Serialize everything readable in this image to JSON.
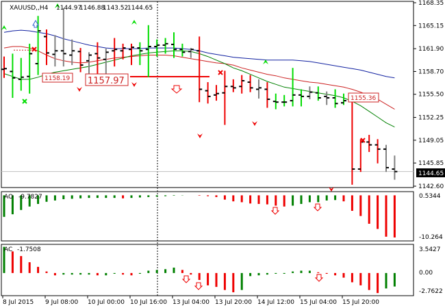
{
  "window": {
    "symbol_title": "XAUUSD,,H4",
    "ohlc": [
      "1144.97",
      "1146.88",
      "1143.52",
      "1144.65"
    ],
    "current_price_label": "1144.65"
  },
  "indicators": {
    "ao": {
      "title": "AO",
      "value": "-9.7827",
      "axis_labels": [
        "0.5344",
        "-10.264"
      ]
    },
    "ac": {
      "title": "AC",
      "value": "-1.7508",
      "axis_labels": [
        "3.5427",
        "0.00",
        "-2.7622"
      ]
    }
  },
  "colors": {
    "bull_bar": "#00dd00",
    "bear_bar": "#ee0000",
    "neutral_bar": "#808080",
    "ma_blue": "#1020a0",
    "ma_red": "#cc2020",
    "ma_green": "#008000",
    "ao_up": "#008000",
    "ao_down": "#ee0000",
    "stop_line": "#ee0000",
    "price_line": "#c0c0c0"
  },
  "annotations": {
    "box1": "1158.19",
    "box2": "1157.97",
    "box3": "1155.36"
  },
  "chart_data": [
    {
      "type": "ohlc",
      "title": "XAUUSD,,H4",
      "x_tick_labels": [
        "8 Jul 2015",
        "9 Jul 08:00",
        "10 Jul 00:00",
        "10 Jul 16:00",
        "13 Jul 04:00",
        "13 Jul 20:00",
        "14 Jul 12:00",
        "15 Jul 04:00",
        "15 Jul 20:00"
      ],
      "y_tick_labels": [
        "1168.35",
        "1165.15",
        "1161.90",
        "1158.70",
        "1155.50",
        "1152.25",
        "1149.05",
        "1145.85",
        "1142.60"
      ],
      "ylim": [
        1142.6,
        1168.35
      ],
      "bars": [
        {
          "o": 1159.0,
          "h": 1160.8,
          "l": 1157.8,
          "c": 1159.1,
          "color": "bear"
        },
        {
          "o": 1158.7,
          "h": 1161.2,
          "l": 1155.0,
          "c": 1157.8,
          "color": "bull"
        },
        {
          "o": 1157.6,
          "h": 1160.6,
          "l": 1156.0,
          "c": 1157.9,
          "color": "bull"
        },
        {
          "o": 1158.0,
          "h": 1162.6,
          "l": 1155.6,
          "c": 1161.2,
          "color": "bull"
        },
        {
          "o": 1159.8,
          "h": 1166.5,
          "l": 1158.2,
          "c": 1164.4,
          "color": "bull"
        },
        {
          "o": 1163.6,
          "h": 1164.6,
          "l": 1159.6,
          "c": 1161.3,
          "color": "bear"
        },
        {
          "o": 1161.1,
          "h": 1163.8,
          "l": 1159.4,
          "c": 1161.6,
          "color": "neutral"
        },
        {
          "o": 1161.6,
          "h": 1167.6,
          "l": 1159.4,
          "c": 1161.2,
          "color": "neutral"
        },
        {
          "o": 1161.0,
          "h": 1163.2,
          "l": 1159.6,
          "c": 1161.6,
          "color": "neutral"
        },
        {
          "o": 1161.5,
          "h": 1162.0,
          "l": 1158.6,
          "c": 1159.6,
          "color": "bear"
        },
        {
          "o": 1160.2,
          "h": 1161.4,
          "l": 1157.6,
          "c": 1161.0,
          "color": "neutral"
        },
        {
          "o": 1161.2,
          "h": 1162.8,
          "l": 1158.0,
          "c": 1160.6,
          "color": "bear"
        },
        {
          "o": 1160.4,
          "h": 1161.9,
          "l": 1158.4,
          "c": 1161.4,
          "color": "neutral"
        },
        {
          "o": 1161.6,
          "h": 1163.4,
          "l": 1159.4,
          "c": 1161.8,
          "color": "bear"
        },
        {
          "o": 1161.6,
          "h": 1162.6,
          "l": 1160.4,
          "c": 1162.0,
          "color": "bear"
        },
        {
          "o": 1161.8,
          "h": 1162.6,
          "l": 1159.6,
          "c": 1162.1,
          "color": "bear"
        },
        {
          "o": 1162.0,
          "h": 1162.8,
          "l": 1159.6,
          "c": 1161.6,
          "color": "bull"
        },
        {
          "o": 1161.8,
          "h": 1165.2,
          "l": 1157.9,
          "c": 1162.2,
          "color": "bull"
        },
        {
          "o": 1162.2,
          "h": 1163.2,
          "l": 1160.8,
          "c": 1162.4,
          "color": "bull"
        },
        {
          "o": 1162.4,
          "h": 1163.4,
          "l": 1161.2,
          "c": 1162.6,
          "color": "bull"
        },
        {
          "o": 1162.5,
          "h": 1164.2,
          "l": 1160.6,
          "c": 1161.8,
          "color": "bull"
        },
        {
          "o": 1161.8,
          "h": 1162.6,
          "l": 1160.8,
          "c": 1161.4,
          "color": "bull"
        },
        {
          "o": 1161.5,
          "h": 1162.0,
          "l": 1160.6,
          "c": 1161.8,
          "color": "neutral"
        },
        {
          "o": 1161.6,
          "h": 1163.6,
          "l": 1154.4,
          "c": 1156.2,
          "color": "bear"
        },
        {
          "o": 1156.0,
          "h": 1157.2,
          "l": 1154.2,
          "c": 1155.2,
          "color": "bear"
        },
        {
          "o": 1155.4,
          "h": 1156.8,
          "l": 1154.6,
          "c": 1155.6,
          "color": "bear"
        },
        {
          "o": 1155.7,
          "h": 1158.8,
          "l": 1151.2,
          "c": 1156.6,
          "color": "bear"
        },
        {
          "o": 1156.6,
          "h": 1157.6,
          "l": 1155.8,
          "c": 1156.4,
          "color": "bear"
        },
        {
          "o": 1156.6,
          "h": 1158.2,
          "l": 1155.6,
          "c": 1157.4,
          "color": "bear"
        },
        {
          "o": 1157.2,
          "h": 1158.2,
          "l": 1155.8,
          "c": 1156.4,
          "color": "bear"
        },
        {
          "o": 1156.2,
          "h": 1157.6,
          "l": 1154.9,
          "c": 1156.4,
          "color": "neutral"
        },
        {
          "o": 1156.2,
          "h": 1157.2,
          "l": 1153.6,
          "c": 1154.8,
          "color": "bear"
        },
        {
          "o": 1154.5,
          "h": 1155.6,
          "l": 1153.4,
          "c": 1154.4,
          "color": "bull"
        },
        {
          "o": 1154.4,
          "h": 1155.4,
          "l": 1153.8,
          "c": 1154.4,
          "color": "bull"
        },
        {
          "o": 1154.6,
          "h": 1159.2,
          "l": 1153.8,
          "c": 1155.4,
          "color": "bull"
        },
        {
          "o": 1155.4,
          "h": 1156.2,
          "l": 1153.8,
          "c": 1155.2,
          "color": "bull"
        },
        {
          "o": 1155.2,
          "h": 1156.6,
          "l": 1154.8,
          "c": 1155.8,
          "color": "neutral"
        },
        {
          "o": 1155.7,
          "h": 1156.6,
          "l": 1154.6,
          "c": 1155.0,
          "color": "bull"
        },
        {
          "o": 1155.2,
          "h": 1155.9,
          "l": 1154.0,
          "c": 1155.0,
          "color": "neutral"
        },
        {
          "o": 1155.0,
          "h": 1156.2,
          "l": 1153.6,
          "c": 1154.2,
          "color": "bull"
        },
        {
          "o": 1154.3,
          "h": 1155.6,
          "l": 1154.0,
          "c": 1154.6,
          "color": "bull"
        },
        {
          "o": 1154.6,
          "h": 1155.4,
          "l": 1142.8,
          "c": 1145.0,
          "color": "bear"
        },
        {
          "o": 1145.0,
          "h": 1149.2,
          "l": 1144.6,
          "c": 1148.8,
          "color": "bear"
        },
        {
          "o": 1148.8,
          "h": 1149.8,
          "l": 1147.4,
          "c": 1148.4,
          "color": "bear"
        },
        {
          "o": 1148.4,
          "h": 1149.2,
          "l": 1145.8,
          "c": 1147.8,
          "color": "bear"
        },
        {
          "o": 1147.8,
          "h": 1148.4,
          "l": 1144.6,
          "c": 1145.2,
          "color": "neutral"
        },
        {
          "o": 1145.0,
          "h": 1146.9,
          "l": 1143.5,
          "c": 1144.65,
          "color": "neutral"
        }
      ],
      "ma_blue": [
        1164.2,
        1164.4,
        1164.5,
        1164.4,
        1164.2,
        1164.0,
        1163.7,
        1163.3,
        1163.0,
        1162.7,
        1162.4,
        1162.2,
        1162.0,
        1161.9,
        1161.9,
        1161.9,
        1161.9,
        1162.0,
        1162.0,
        1162.0,
        1162.0,
        1161.9,
        1161.8,
        1161.6,
        1161.3,
        1161.1,
        1160.9,
        1160.7,
        1160.6,
        1160.5,
        1160.4,
        1160.3,
        1160.3,
        1160.3,
        1160.3,
        1160.2,
        1160.1,
        1159.9,
        1159.7,
        1159.5,
        1159.3,
        1159.1,
        1158.9,
        1158.6,
        1158.3,
        1158.0,
        1157.8
      ],
      "ma_red": [
        1162.0,
        1162.2,
        1162.2,
        1162.0,
        1161.6,
        1161.0,
        1160.5,
        1160.2,
        1160.0,
        1159.9,
        1160.0,
        1160.2,
        1160.4,
        1160.6,
        1160.7,
        1160.8,
        1160.9,
        1161.0,
        1161.0,
        1161.0,
        1160.9,
        1160.7,
        1160.5,
        1160.3,
        1160.1,
        1159.9,
        1159.8,
        1159.6,
        1159.2,
        1158.9,
        1158.6,
        1158.3,
        1158.1,
        1157.8,
        1157.6,
        1157.4,
        1157.2,
        1157.1,
        1156.9,
        1156.7,
        1156.5,
        1156.2,
        1155.8,
        1155.3,
        1154.8,
        1154.1,
        1153.4
      ],
      "ma_green": [
        1158.4,
        1158.0,
        1157.6,
        1157.6,
        1157.9,
        1158.3,
        1158.6,
        1158.8,
        1159.0,
        1159.2,
        1159.4,
        1159.7,
        1160.0,
        1160.3,
        1160.6,
        1160.9,
        1161.1,
        1161.3,
        1161.4,
        1161.5,
        1161.6,
        1161.6,
        1161.5,
        1161.2,
        1160.8,
        1160.3,
        1159.8,
        1159.2,
        1158.8,
        1158.3,
        1157.8,
        1157.3,
        1156.9,
        1156.5,
        1156.3,
        1156.1,
        1155.9,
        1155.7,
        1155.5,
        1155.3,
        1155.0,
        1154.5,
        1153.9,
        1153.1,
        1152.3,
        1151.5,
        1150.9
      ],
      "annotation_values": [
        1158.19,
        1157.97,
        1155.36
      ],
      "stop_line_value": 1157.97,
      "current_price": 1144.65
    },
    {
      "type": "bar",
      "title": "AO",
      "ylim": [
        -10.264,
        0.5344
      ],
      "values": [
        -5.0,
        -4.4,
        -3.4,
        -2.6,
        -2.0,
        -1.5,
        -1.2,
        -0.9,
        -0.8,
        -0.7,
        -0.6,
        -0.6,
        -0.6,
        -0.6,
        -0.7,
        -0.6,
        -0.5,
        -0.4,
        -0.3,
        -0.2,
        -0.1,
        -0.05,
        0.0,
        -0.1,
        -0.2,
        -0.4,
        -1.0,
        -1.4,
        -1.6,
        -1.9,
        -2.0,
        -2.1,
        -2.4,
        -2.6,
        -2.4,
        -2.0,
        -1.6,
        -1.6,
        -1.2,
        -1.1,
        -1.4,
        -3.6,
        -4.8,
        -6.6,
        -7.8,
        -9.6,
        -9.78
      ],
      "direction": [
        "up",
        "up",
        "up",
        "up",
        "up",
        "up",
        "up",
        "up",
        "up",
        "up",
        "up",
        "up",
        "up",
        "up",
        "down",
        "up",
        "up",
        "up",
        "up",
        "up",
        "up",
        "up",
        "up",
        "down",
        "down",
        "down",
        "down",
        "down",
        "down",
        "down",
        "down",
        "down",
        "down",
        "down",
        "up",
        "up",
        "up",
        "up",
        "up",
        "up",
        "down",
        "down",
        "down",
        "down",
        "down",
        "down",
        "down"
      ]
    },
    {
      "type": "bar",
      "title": "AC",
      "ylim": [
        -2.7622,
        3.5427
      ],
      "values": [
        3.4,
        2.8,
        2.2,
        1.4,
        0.8,
        0.2,
        -0.3,
        -0.2,
        -0.2,
        -0.2,
        -0.2,
        -0.3,
        -0.3,
        -0.1,
        -0.2,
        -0.3,
        -0.1,
        0.3,
        0.4,
        0.5,
        0.7,
        0.4,
        -0.2,
        -0.9,
        -1.6,
        -1.8,
        -2.2,
        -2.5,
        -2.2,
        -0.4,
        -0.3,
        -0.2,
        -0.1,
        -0.1,
        0.2,
        0.3,
        0.3,
        0.1,
        -0.1,
        -0.3,
        -0.6,
        -1.2,
        -1.6,
        -2.2,
        -2.6,
        -2.0,
        -1.75
      ],
      "direction": [
        "up",
        "down",
        "down",
        "down",
        "down",
        "down",
        "down",
        "up",
        "up",
        "up",
        "up",
        "down",
        "up",
        "up",
        "down",
        "down",
        "up",
        "up",
        "up",
        "up",
        "up",
        "down",
        "down",
        "down",
        "down",
        "down",
        "down",
        "down",
        "up",
        "up",
        "up",
        "up",
        "up",
        "up",
        "up",
        "up",
        "up",
        "down",
        "down",
        "down",
        "down",
        "down",
        "down",
        "down",
        "down",
        "up",
        "up"
      ]
    }
  ]
}
